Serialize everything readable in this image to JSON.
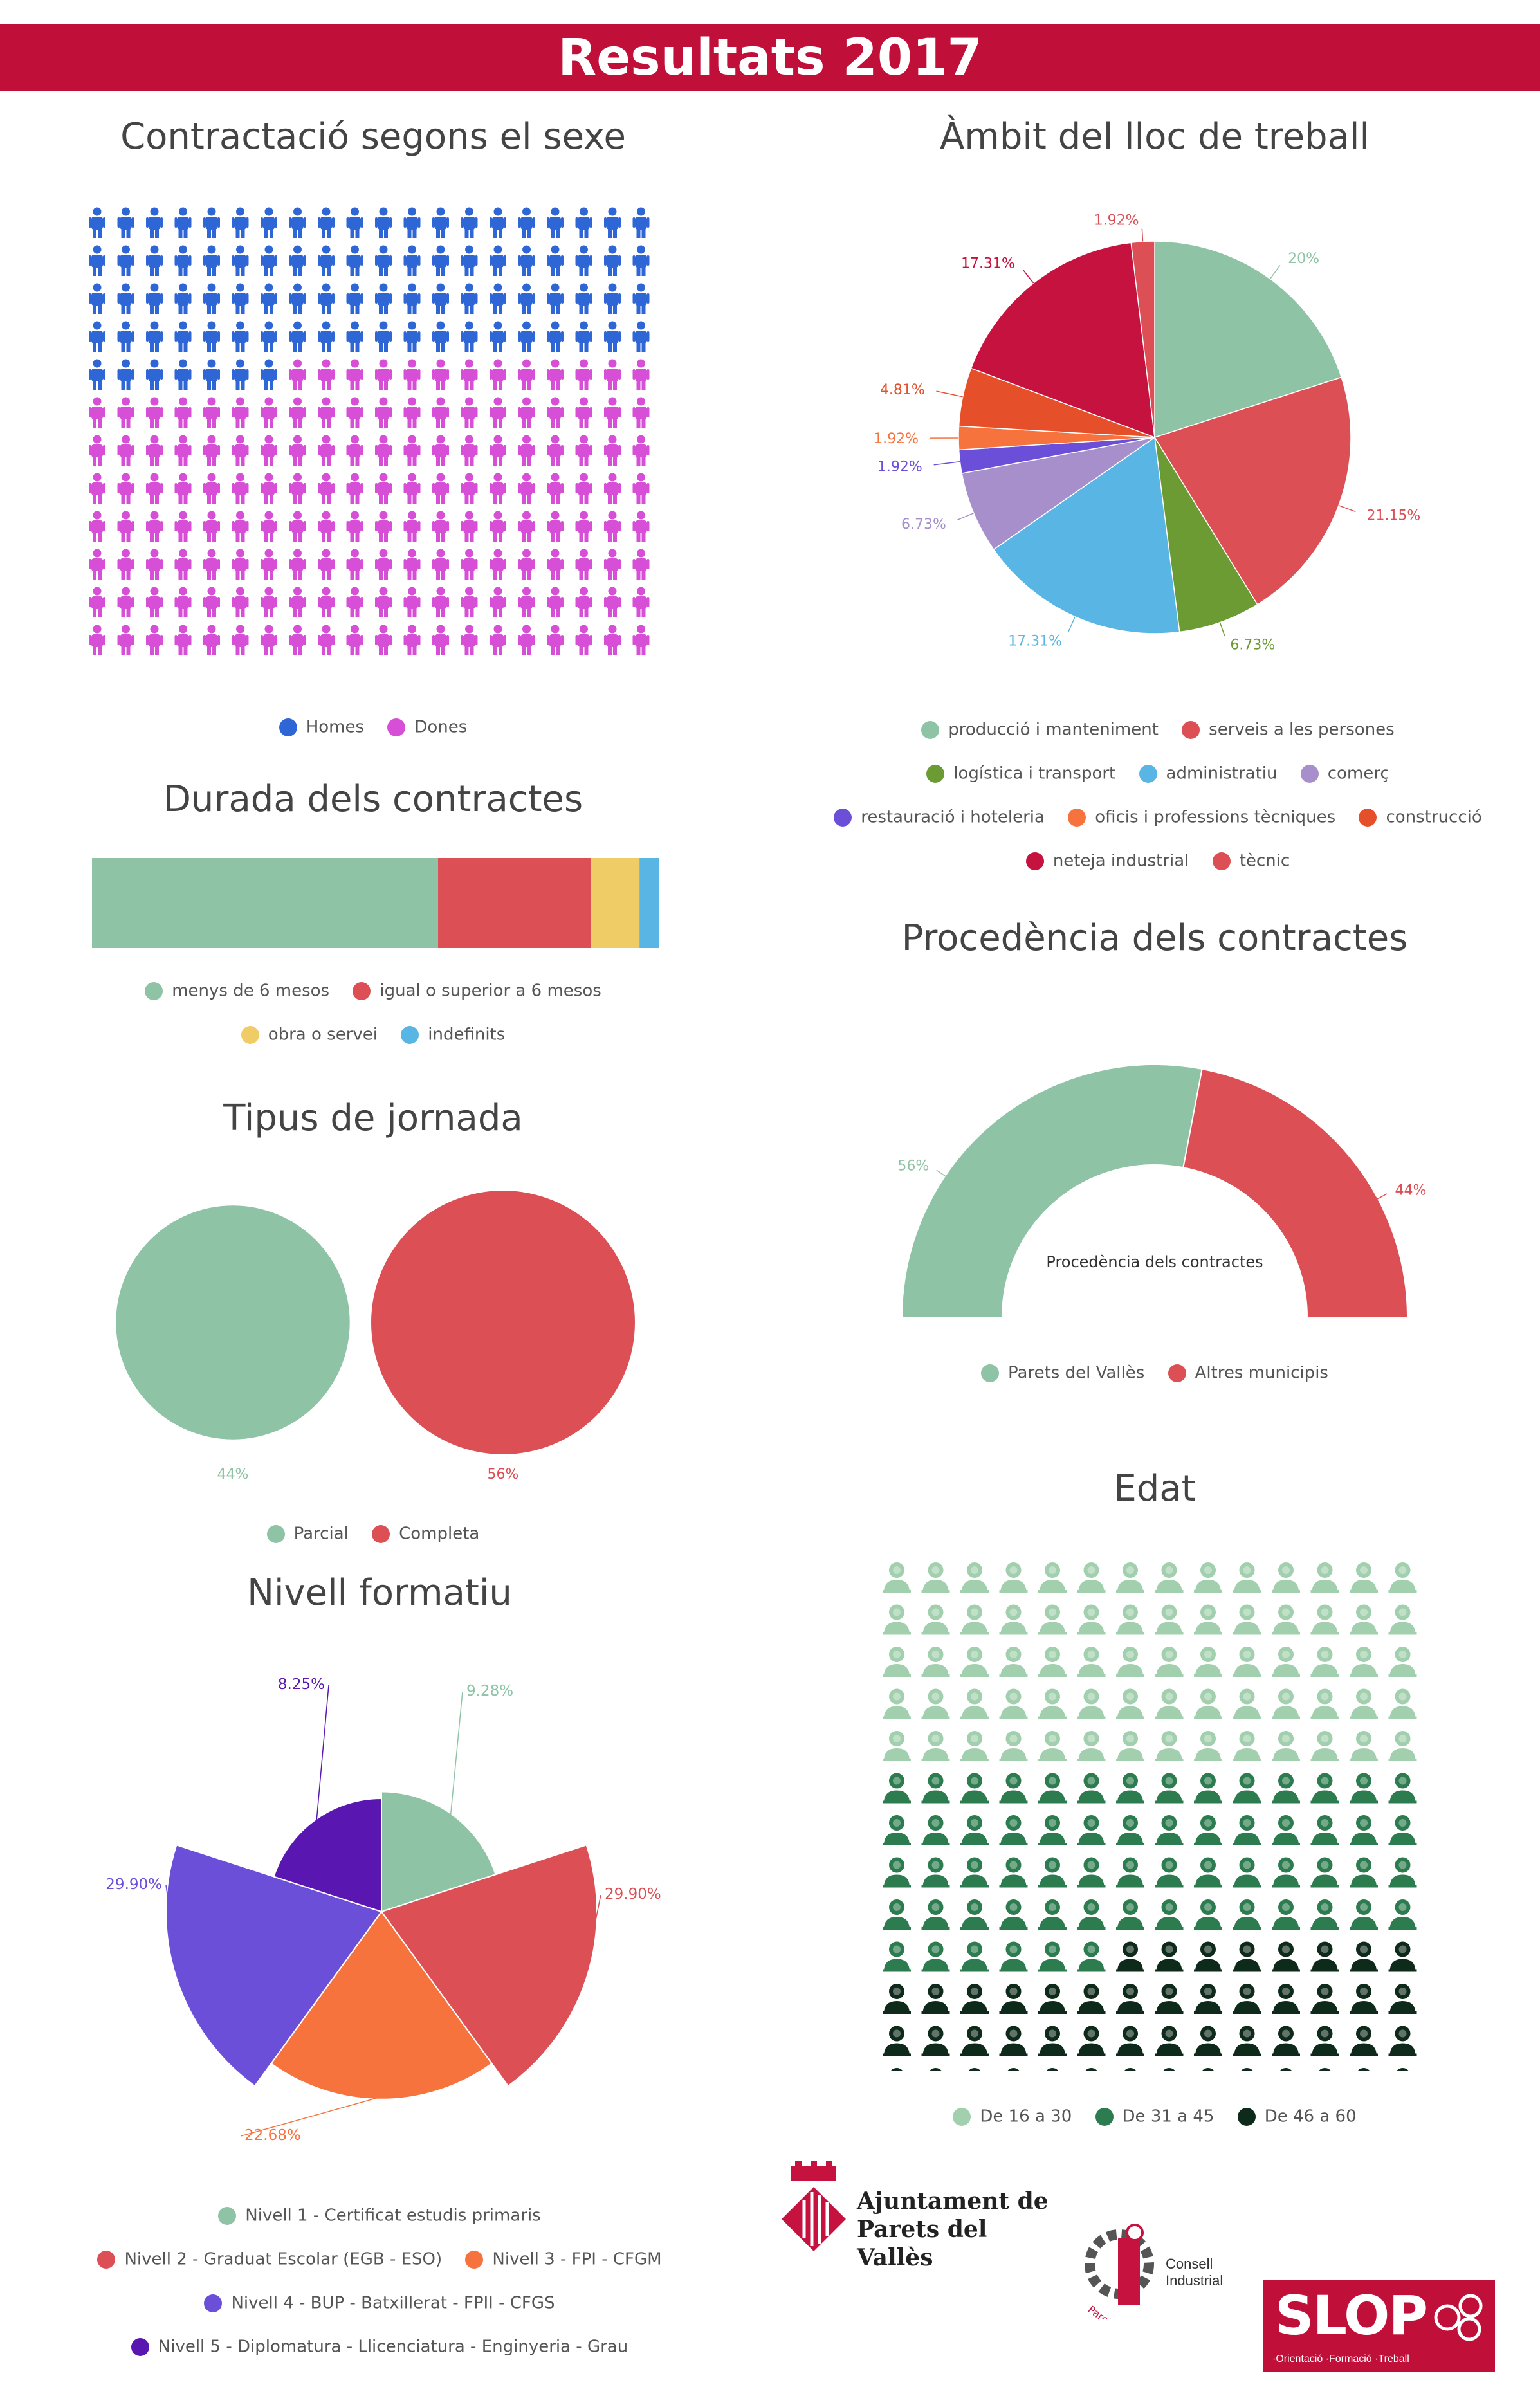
{
  "header": {
    "title": "Resultats 2017"
  },
  "colors": {
    "green": "#8fc3a5",
    "red": "#dc4f55",
    "yellow": "#f0cc66",
    "blue": "#58b5e4",
    "olive": "#6b9b32",
    "purple": "#a78fcb",
    "violet": "#6b4fd8",
    "orange": "#f7733d",
    "darkorange": "#e54f2a",
    "crimson": "#c5123f",
    "men": "#2f66d6",
    "women": "#d64fd6",
    "age1": "#a2cfad",
    "age2": "#2c7c4f",
    "age3": "#0e2a1b"
  },
  "sex": {
    "title": "Contractació segons el sexe",
    "legend": [
      "Homes",
      "Dones"
    ],
    "men_count": 87,
    "total": 240
  },
  "ambit": {
    "title": "Àmbit del lloc de treball",
    "slices": [
      {
        "label": "producció i manteniment",
        "value": 20,
        "pct": "20%",
        "color": "#8fc3a5"
      },
      {
        "label": "serveis a les persones",
        "value": 21.15,
        "pct": "21.15%",
        "color": "#dc4f55"
      },
      {
        "label": "logística i transport",
        "value": 6.73,
        "pct": "6.73%",
        "color": "#6b9b32"
      },
      {
        "label": "administratiu",
        "value": 17.31,
        "pct": "17.31%",
        "color": "#58b5e4"
      },
      {
        "label": "comerç",
        "value": 6.73,
        "pct": "6.73%",
        "color": "#a78fcb"
      },
      {
        "label": "restauració i hoteleria",
        "value": 1.92,
        "pct": "1.92%",
        "color": "#6b4fd8"
      },
      {
        "label": "oficis i professions tècniques",
        "value": 1.92,
        "pct": "1.92%",
        "color": "#f7733d"
      },
      {
        "label": "construcció",
        "value": 4.81,
        "pct": "4.81%",
        "color": "#e54f2a"
      },
      {
        "label": "neteja industrial",
        "value": 17.31,
        "pct": "17.31%",
        "color": "#c5123f"
      },
      {
        "label": "tècnic",
        "value": 1.92,
        "pct": "1.92%",
        "color": "#dc4f55"
      }
    ]
  },
  "durada": {
    "title": "Durada dels contractes",
    "segments": [
      {
        "label": "menys de 6 mesos",
        "value": 61,
        "color": "#8fc3a5"
      },
      {
        "label": "igual o superior a 6 mesos",
        "value": 27,
        "color": "#dc4f55"
      },
      {
        "label": "obra o servei",
        "value": 8.5,
        "color": "#f0cc66"
      },
      {
        "label": "indefinits",
        "value": 3.5,
        "color": "#58b5e4"
      }
    ]
  },
  "procedencia": {
    "title": "Procedència dels contractes",
    "center_label": "Procedència dels contractes",
    "slices": [
      {
        "label": "Parets del Vallès",
        "value": 56,
        "pct": "56%",
        "color": "#8fc3a5"
      },
      {
        "label": "Altres municipis",
        "value": 44,
        "pct": "44%",
        "color": "#dc4f55"
      }
    ]
  },
  "jornada": {
    "title": "Tipus de jornada",
    "items": [
      {
        "label": "Parcial",
        "value": 44,
        "pct": "44%",
        "color": "#8fc3a5"
      },
      {
        "label": "Completa",
        "value": 56,
        "pct": "56%",
        "color": "#dc4f55"
      }
    ]
  },
  "edat": {
    "title": "Edat",
    "legend": [
      {
        "label": "De 16 a 30",
        "color": "#a2cfad"
      },
      {
        "label": "De 31 a 45",
        "color": "#2c7c4f"
      },
      {
        "label": "De 46 a 60",
        "color": "#0e2a1b"
      }
    ],
    "counts": [
      70,
      62,
      50
    ]
  },
  "nivell": {
    "title": "Nivell formatiu",
    "slices": [
      {
        "label": "Nivell 1 - Certificat estudis primaris",
        "value": 9.28,
        "pct": "9.28%",
        "color": "#8fc3a5"
      },
      {
        "label": "Nivell 2 - Graduat Escolar (EGB - ESO)",
        "value": 29.9,
        "pct": "29.90%",
        "color": "#dc4f55"
      },
      {
        "label": "Nivell 3 - FPI - CFGM",
        "value": 22.68,
        "pct": "22.68%",
        "color": "#f7733d"
      },
      {
        "label": "Nivell 4 - BUP - Batxillerat - FPII - CFGS",
        "value": 29.9,
        "pct": "29.90%",
        "color": "#6b4fd8"
      },
      {
        "label": "Nivell 5 - Diplomatura - Llicenciatura - Enginyeria - Grau",
        "value": 8.25,
        "pct": "8.25%",
        "color": "#5a16b0"
      }
    ]
  },
  "logos": {
    "ajuntament_line1": "Ajuntament de",
    "ajuntament_line2": "Parets del Vallès",
    "consell_line1": "Consell",
    "consell_line2": "Industrial",
    "consell_arc": "Parets del Vallès",
    "slop_name": "SLOP",
    "slop_tagline": "·Orientació ·Formació ·Treball"
  }
}
